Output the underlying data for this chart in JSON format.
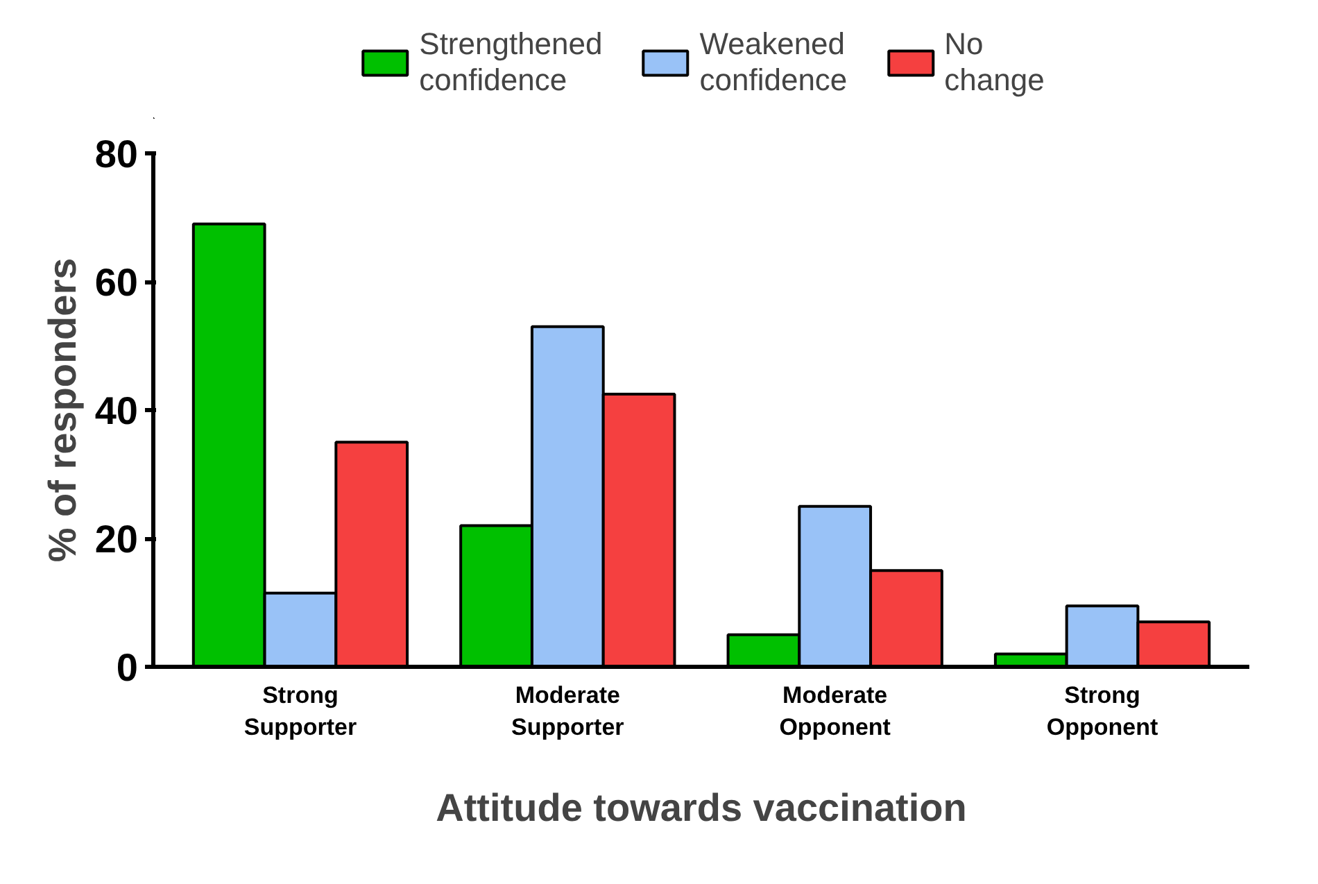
{
  "chart_data": {
    "type": "bar",
    "xlabel": "Attitude towards vaccination",
    "ylabel": "% of responders",
    "categories": [
      "Strong Supporter",
      "Moderate Supporter",
      "Moderate Opponent",
      "Strong Opponent"
    ],
    "series": [
      {
        "name": "Strengthened confidence",
        "color": "#00c000",
        "values": [
          69,
          22,
          5,
          2
        ]
      },
      {
        "name": "Weakened confidence",
        "color": "#99c2f7",
        "values": [
          11.5,
          53,
          25,
          9.5
        ]
      },
      {
        "name": "No change",
        "color": "#f54040",
        "values": [
          35,
          42.5,
          15,
          7
        ]
      }
    ],
    "ylim": [
      0,
      80
    ],
    "yticks": [
      0,
      20,
      40,
      60,
      80
    ],
    "grid": false,
    "legend": "top"
  }
}
